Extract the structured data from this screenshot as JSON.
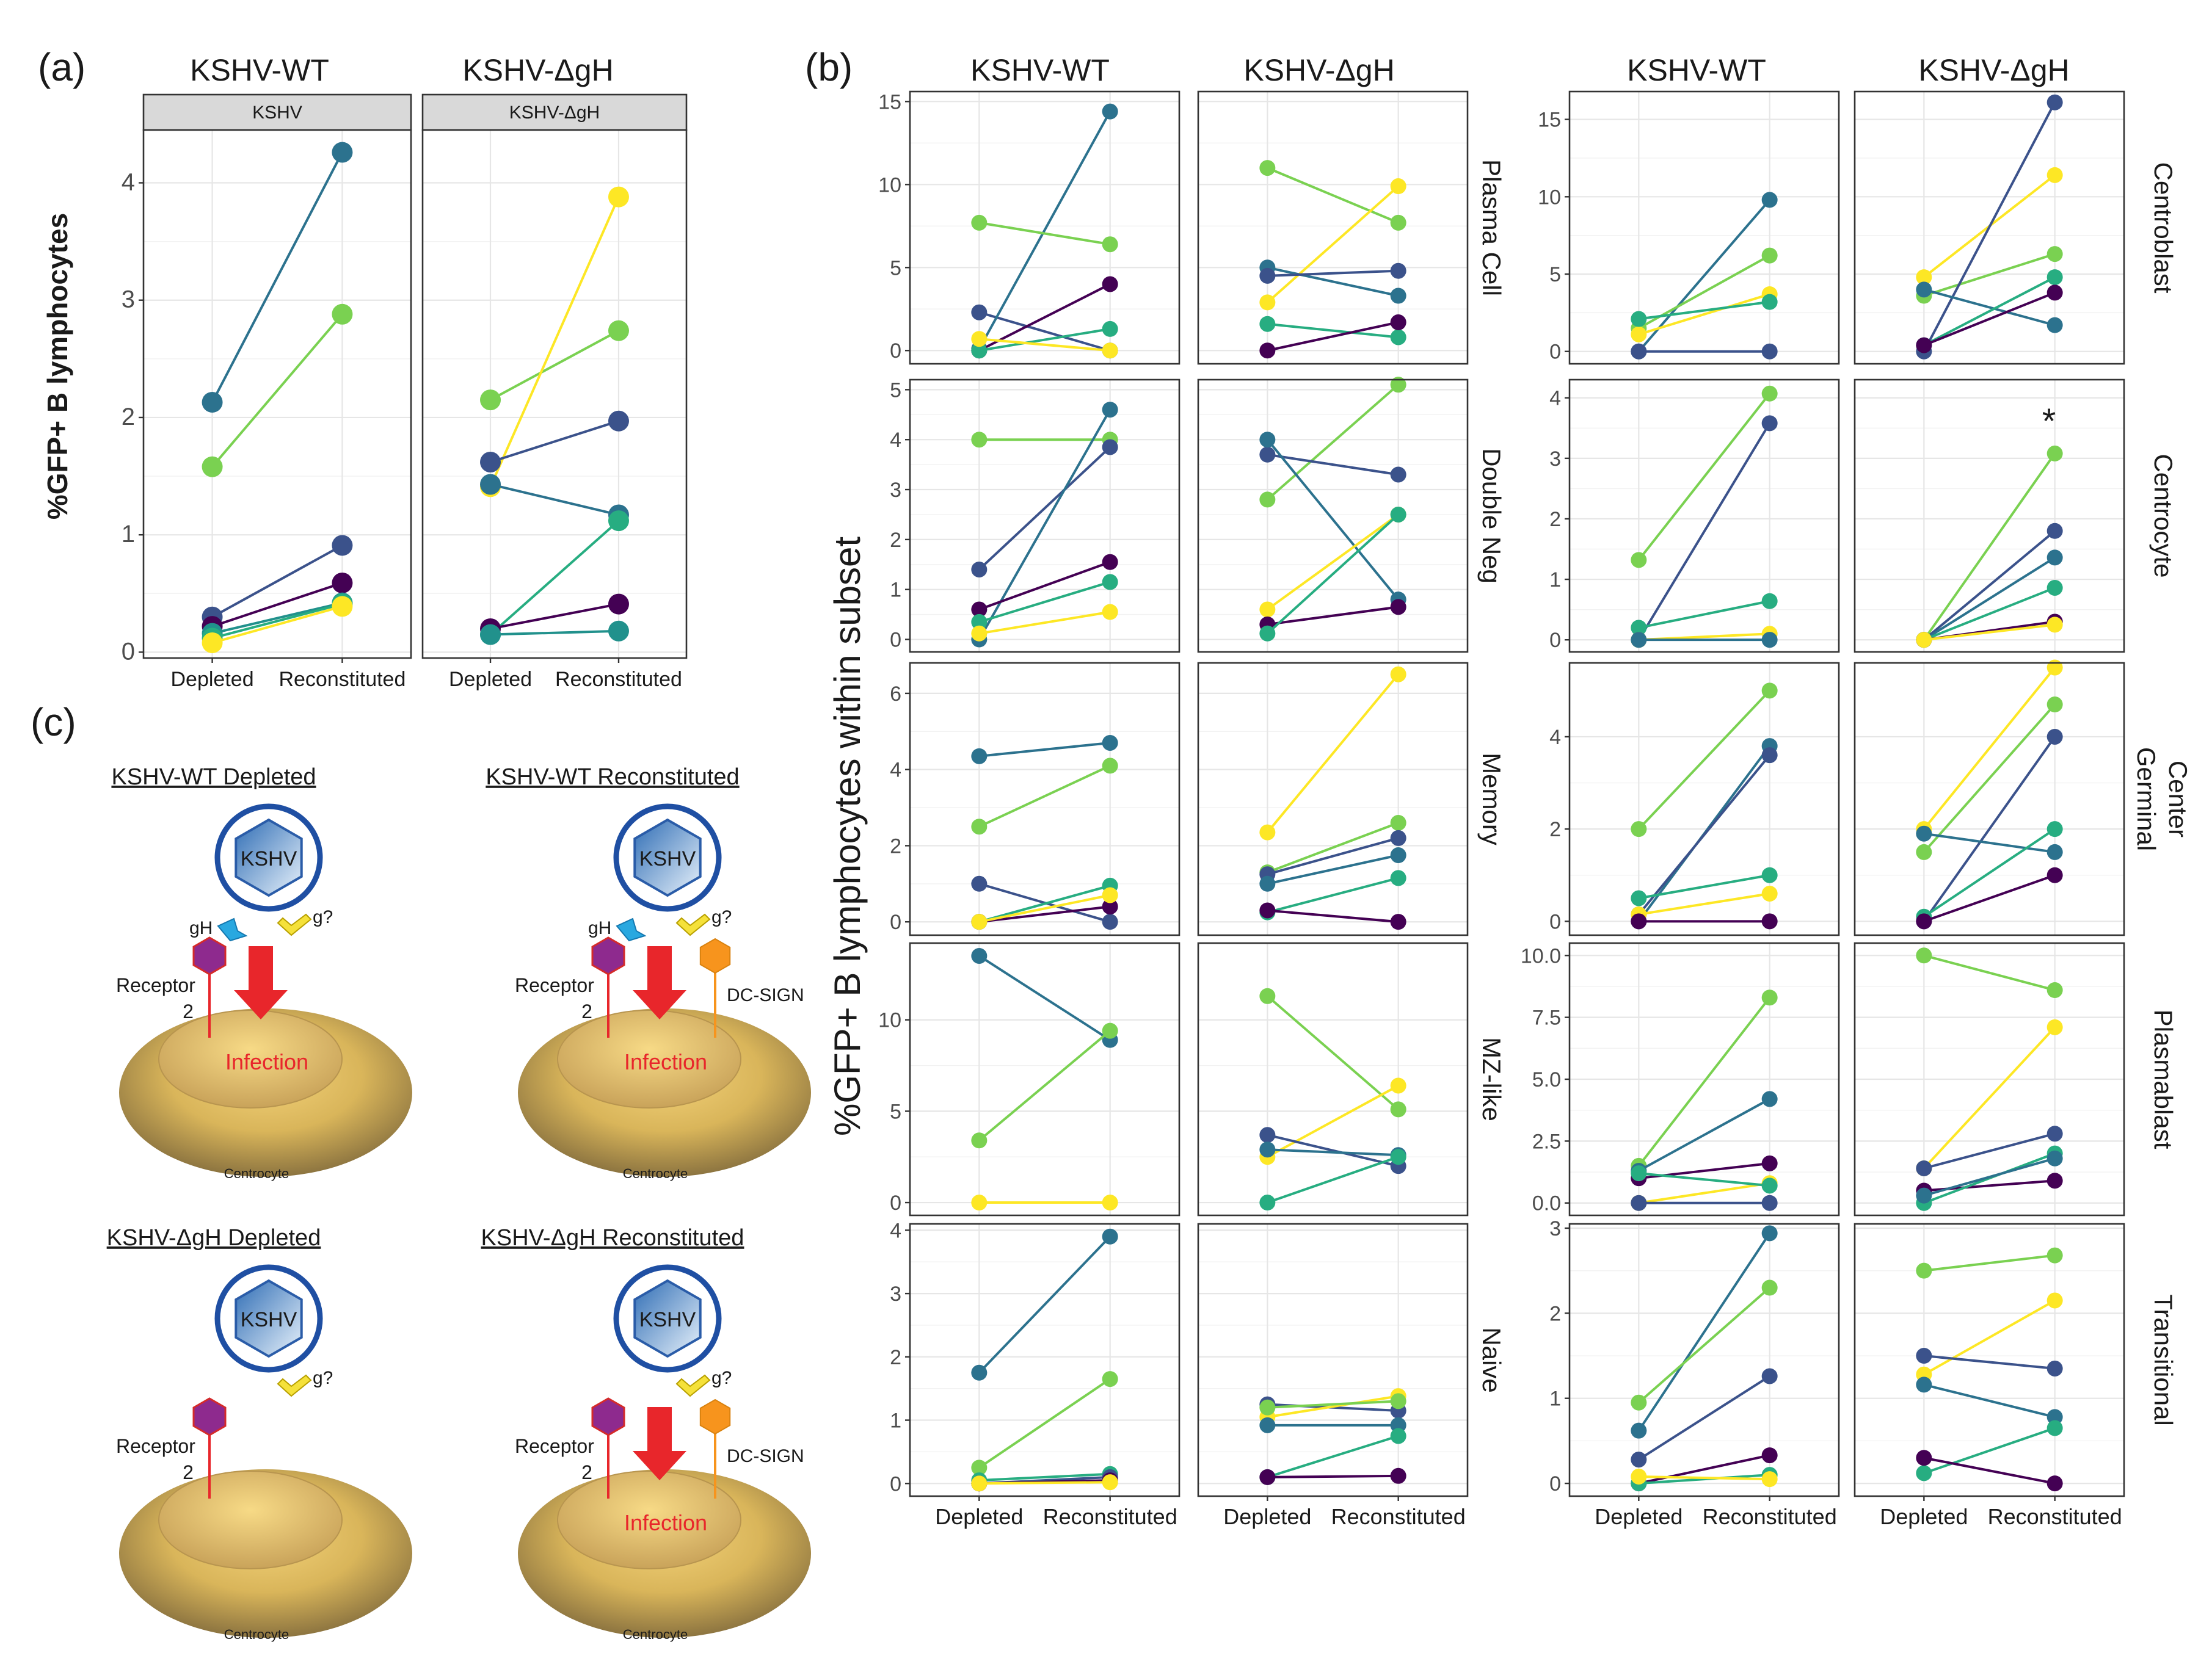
{
  "panel_labels": {
    "a": "(a)",
    "b": "(b)",
    "c": "(c)"
  },
  "colors": {
    "c1": "#440154",
    "c2": "#3b528b",
    "c3": "#2c728e",
    "c4": "#21918c",
    "c5": "#27ad81",
    "c6": "#7ad151",
    "c7": "#fde725",
    "virus_blue": "#3b7fc4",
    "receptor": "#8e2a8e",
    "dcsign": "#f7941d",
    "gh": "#29a8e0",
    "gq": "#f5e13a",
    "arrow": "#e8262b",
    "cell": "#c8a96a"
  },
  "panel_a": {
    "col_titles": [
      "KSHV-WT",
      "KSHV-ΔgH"
    ],
    "strip_labels": [
      "KSHV",
      "KSHV-ΔgH"
    ],
    "ylabel": "%GFP+ B lymphocytes",
    "x_categories": [
      "Depleted",
      "Reconstituted"
    ]
  },
  "panel_b": {
    "col_titles": [
      "KSHV-WT",
      "KSHV-ΔgH",
      "KSHV-WT",
      "KSHV-ΔgH"
    ],
    "ylabel": "%GFP+ B lymphocytes within subset",
    "x_categories": [
      "Depleted",
      "Reconstituted"
    ],
    "left_row_labels": [
      "Plasma Cell",
      "Double Neg",
      "Memory",
      "MZ-like",
      "Naive"
    ],
    "right_row_labels": [
      [
        "Centroblast"
      ],
      [
        "Centrocyte"
      ],
      [
        "Germinal",
        "Center"
      ],
      [
        "Plasmablast"
      ],
      [
        "Transitional"
      ]
    ],
    "annotation": "*"
  },
  "chart_data": [
    {
      "type": "line",
      "panel": "a",
      "facets": [
        "KSHV-WT",
        "KSHV-ΔgH"
      ],
      "strips": [
        "KSHV",
        "KSHV-ΔgH"
      ],
      "categories": [
        "Depleted",
        "Reconstituted"
      ],
      "ylabel": "%GFP+ B lymphocytes",
      "ylim": [
        -0.05,
        4.45
      ],
      "yticks": [
        0,
        1,
        2,
        3,
        4
      ],
      "facet_series": [
        [
          [
            2.13,
            4.26,
            "c3"
          ],
          [
            1.58,
            2.88,
            "c6"
          ],
          [
            0.3,
            0.91,
            "c2"
          ],
          [
            0.22,
            0.59,
            "c1"
          ],
          [
            0.16,
            0.42,
            "c4"
          ],
          [
            0.12,
            0.41,
            "c5"
          ],
          [
            0.08,
            0.39,
            "c7"
          ]
        ],
        [
          [
            2.15,
            2.74,
            "c6"
          ],
          [
            1.41,
            3.88,
            "c7"
          ],
          [
            1.62,
            1.97,
            "c2"
          ],
          [
            1.43,
            1.17,
            "c3"
          ],
          [
            0.15,
            1.12,
            "c5"
          ],
          [
            0.2,
            0.41,
            "c1"
          ],
          [
            0.15,
            0.18,
            "c4"
          ]
        ]
      ]
    },
    {
      "type": "line",
      "panel": "b-left",
      "facets": [
        "KSHV-WT",
        "KSHV-ΔgH"
      ],
      "categories": [
        "Depleted",
        "Reconstituted"
      ],
      "ylabel": "%GFP+ B lymphocytes within subset",
      "rows": [
        {
          "label": "Plasma Cell",
          "ylim": [
            -0.8,
            15.6
          ],
          "yticks": [
            0,
            5,
            10,
            15
          ],
          "series": [
            [
              [
                2.3,
                0,
                "c2"
              ],
              [
                0.1,
                14.4,
                "c3"
              ],
              [
                7.7,
                6.4,
                "c6"
              ],
              [
                0,
                4.0,
                "c1"
              ],
              [
                0,
                1.3,
                "c5"
              ],
              [
                0.7,
                0,
                "c7"
              ]
            ],
            [
              [
                11.0,
                7.7,
                "c6"
              ],
              [
                2.9,
                9.9,
                "c7"
              ],
              [
                5.0,
                3.3,
                "c3"
              ],
              [
                4.5,
                4.8,
                "c2"
              ],
              [
                1.6,
                0.8,
                "c5"
              ],
              [
                0,
                1.7,
                "c1"
              ]
            ]
          ]
        },
        {
          "label": "Double Neg",
          "ylim": [
            -0.25,
            5.2
          ],
          "yticks": [
            0,
            1,
            2,
            3,
            4,
            5
          ],
          "series": [
            [
              [
                4.0,
                4.0,
                "c6"
              ],
              [
                1.4,
                3.85,
                "c2"
              ],
              [
                0,
                4.6,
                "c3"
              ],
              [
                0.6,
                1.55,
                "c1"
              ],
              [
                0.35,
                1.15,
                "c5"
              ],
              [
                0.12,
                0.55,
                "c7"
              ]
            ],
            [
              [
                2.8,
                5.1,
                "c6"
              ],
              [
                3.7,
                3.3,
                "c2"
              ],
              [
                4.0,
                0.8,
                "c3"
              ],
              [
                0.6,
                2.5,
                "c7"
              ],
              [
                0.3,
                0.65,
                "c1"
              ],
              [
                0.12,
                2.5,
                "c5"
              ]
            ]
          ]
        },
        {
          "label": "Memory",
          "ylim": [
            -0.35,
            6.8
          ],
          "yticks": [
            0,
            2,
            4,
            6
          ],
          "series": [
            [
              [
                4.35,
                4.7,
                "c3"
              ],
              [
                2.5,
                4.1,
                "c6"
              ],
              [
                1.0,
                0,
                "c2"
              ],
              [
                0,
                0.95,
                "c5"
              ],
              [
                0,
                0.4,
                "c1"
              ],
              [
                0,
                0.7,
                "c7"
              ]
            ],
            [
              [
                2.35,
                6.5,
                "c7"
              ],
              [
                1.3,
                2.6,
                "c6"
              ],
              [
                1.25,
                2.2,
                "c2"
              ],
              [
                1.0,
                1.75,
                "c3"
              ],
              [
                0.25,
                1.15,
                "c5"
              ],
              [
                0.3,
                0,
                "c1"
              ]
            ]
          ]
        },
        {
          "label": "MZ-like",
          "ylim": [
            -0.7,
            14.2
          ],
          "yticks": [
            0,
            5,
            10
          ],
          "series": [
            [
              [
                13.5,
                8.9,
                "c3"
              ],
              [
                3.4,
                9.4,
                "c6"
              ],
              [
                0,
                0,
                "c7"
              ]
            ],
            [
              [
                11.3,
                5.1,
                "c6"
              ],
              [
                2.5,
                6.4,
                "c7"
              ],
              [
                3.7,
                2.0,
                "c2"
              ],
              [
                2.9,
                2.6,
                "c3"
              ],
              [
                0,
                2.5,
                "c5"
              ]
            ]
          ]
        },
        {
          "label": "Naive",
          "ylim": [
            -0.2,
            4.1
          ],
          "yticks": [
            0,
            1,
            2,
            3,
            4
          ],
          "series": [
            [
              [
                1.75,
                3.9,
                "c3"
              ],
              [
                0.25,
                1.65,
                "c6"
              ],
              [
                0.05,
                0.15,
                "c5"
              ],
              [
                0,
                0.1,
                "c2"
              ],
              [
                0,
                0.05,
                "c1"
              ],
              [
                0,
                0.02,
                "c7"
              ]
            ],
            [
              [
                1.25,
                1.15,
                "c2"
              ],
              [
                1.05,
                1.38,
                "c7"
              ],
              [
                1.2,
                1.3,
                "c6"
              ],
              [
                0.92,
                0.92,
                "c3"
              ],
              [
                0.1,
                0.75,
                "c5"
              ],
              [
                0.1,
                0.12,
                "c1"
              ]
            ]
          ]
        }
      ]
    },
    {
      "type": "line",
      "panel": "b-right",
      "facets": [
        "KSHV-WT",
        "KSHV-ΔgH"
      ],
      "categories": [
        "Depleted",
        "Reconstituted"
      ],
      "rows": [
        {
          "label": "Centroblast",
          "ylim": [
            -0.8,
            16.8
          ],
          "yticks": [
            0,
            5,
            10,
            15
          ],
          "series": [
            [
              [
                0,
                9.8,
                "c3"
              ],
              [
                1.5,
                6.2,
                "c6"
              ],
              [
                1.1,
                3.7,
                "c7"
              ],
              [
                2.1,
                3.2,
                "c5"
              ],
              [
                0,
                0,
                "c2"
              ]
            ],
            [
              [
                4.8,
                11.4,
                "c7"
              ],
              [
                3.6,
                6.3,
                "c6"
              ],
              [
                0,
                16.1,
                "c2"
              ],
              [
                4.0,
                1.7,
                "c3"
              ],
              [
                0.4,
                4.8,
                "c5"
              ],
              [
                0.4,
                3.8,
                "c1"
              ]
            ]
          ]
        },
        {
          "label": "Centrocyte",
          "ylim": [
            -0.2,
            4.3
          ],
          "yticks": [
            0,
            1,
            2,
            3,
            4
          ],
          "series": [
            [
              [
                1.32,
                4.07,
                "c6"
              ],
              [
                0,
                3.58,
                "c2"
              ],
              [
                0.2,
                0.64,
                "c5"
              ],
              [
                0,
                0.1,
                "c7"
              ],
              [
                0,
                0,
                "c3"
              ]
            ],
            [
              [
                0,
                3.08,
                "c6"
              ],
              [
                0,
                1.8,
                "c2"
              ],
              [
                0,
                1.36,
                "c3"
              ],
              [
                0,
                0.86,
                "c5"
              ],
              [
                0,
                0.3,
                "c1"
              ],
              [
                0,
                0.25,
                "c7"
              ]
            ]
          ]
        },
        {
          "label": "Germinal Center",
          "ylim": [
            -0.3,
            5.6
          ],
          "yticks": [
            0,
            2,
            4
          ],
          "series": [
            [
              [
                2.0,
                5.0,
                "c6"
              ],
              [
                0,
                3.8,
                "c3"
              ],
              [
                0.15,
                3.6,
                "c2"
              ],
              [
                0.5,
                1.0,
                "c5"
              ],
              [
                0.15,
                0.6,
                "c7"
              ],
              [
                0,
                0,
                "c1"
              ]
            ],
            [
              [
                2.0,
                5.5,
                "c7"
              ],
              [
                1.5,
                4.7,
                "c6"
              ],
              [
                0,
                4.0,
                "c2"
              ],
              [
                1.9,
                1.5,
                "c3"
              ],
              [
                0.1,
                2.0,
                "c5"
              ],
              [
                0,
                1.0,
                "c1"
              ]
            ]
          ]
        },
        {
          "label": "Plasmablast",
          "ylim": [
            -0.5,
            10.5
          ],
          "yticks": [
            0.0,
            2.5,
            5.0,
            7.5,
            10.0
          ],
          "series": [
            [
              [
                1.5,
                8.3,
                "c6"
              ],
              [
                1.3,
                4.2,
                "c3"
              ],
              [
                1.0,
                1.6,
                "c1"
              ],
              [
                0,
                0.8,
                "c7"
              ],
              [
                0,
                0,
                "c2"
              ],
              [
                1.2,
                0.7,
                "c5"
              ]
            ],
            [
              [
                10.0,
                8.6,
                "c6"
              ],
              [
                1.4,
                7.1,
                "c7"
              ],
              [
                1.4,
                2.8,
                "c2"
              ],
              [
                0.5,
                0.9,
                "c1"
              ],
              [
                0,
                2.0,
                "c5"
              ],
              [
                0.3,
                1.8,
                "c3"
              ]
            ]
          ]
        },
        {
          "label": "Transitional",
          "ylim": [
            -0.15,
            3.05
          ],
          "yticks": [
            0,
            1,
            2,
            3
          ],
          "series": [
            [
              [
                0.62,
                2.94,
                "c3"
              ],
              [
                0.95,
                2.3,
                "c6"
              ],
              [
                0.28,
                1.26,
                "c2"
              ],
              [
                0,
                0.33,
                "c1"
              ],
              [
                0,
                0.1,
                "c5"
              ],
              [
                0.08,
                0.05,
                "c7"
              ]
            ],
            [
              [
                2.5,
                2.68,
                "c6"
              ],
              [
                1.28,
                2.15,
                "c7"
              ],
              [
                1.5,
                1.35,
                "c2"
              ],
              [
                1.16,
                0.78,
                "c3"
              ],
              [
                0.12,
                0.65,
                "c5"
              ],
              [
                0.3,
                0,
                "c1"
              ]
            ]
          ]
        }
      ]
    }
  ],
  "panel_c": {
    "titles": [
      "KSHV-WT Depleted",
      "KSHV-WT Reconstituted",
      "KSHV-ΔgH Depleted",
      "KSHV-ΔgH Reconstituted"
    ],
    "virus_label": "KSHV",
    "gh_label": "gH",
    "gq_label": "g?",
    "receptor_label_1": "Receptor",
    "receptor_label_2": "2",
    "dcsign_label": "DC-SIGN",
    "infection_label": "Infection",
    "cell_label": "Centrocyte"
  }
}
